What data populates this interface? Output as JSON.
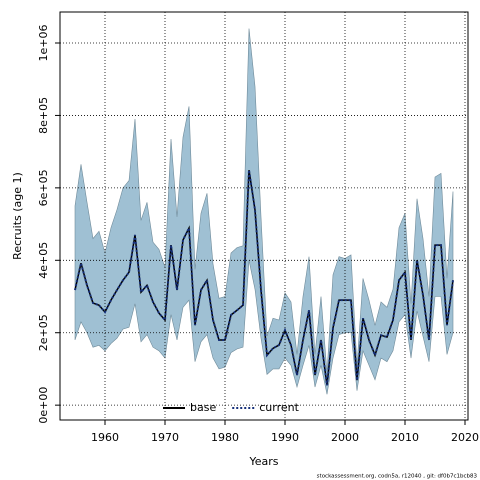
{
  "chart_data": {
    "type": "line",
    "xlabel": "Years",
    "ylabel": "Recruits (age 1)",
    "footnote": "stockassessment.org, codn5a, r12040 , git: df0b7c1bcb83",
    "x": [
      1955,
      1956,
      1957,
      1958,
      1959,
      1960,
      1961,
      1962,
      1963,
      1964,
      1965,
      1966,
      1967,
      1968,
      1969,
      1970,
      1971,
      1972,
      1973,
      1974,
      1975,
      1976,
      1977,
      1978,
      1979,
      1980,
      1981,
      1982,
      1983,
      1984,
      1985,
      1986,
      1987,
      1988,
      1989,
      1990,
      1991,
      1992,
      1993,
      1994,
      1995,
      1996,
      1997,
      1998,
      1999,
      2000,
      2001,
      2002,
      2003,
      2004,
      2005,
      2006,
      2007,
      2008,
      2009,
      2010,
      2011,
      2012,
      2013,
      2014,
      2015,
      2016,
      2017,
      2018
    ],
    "band": {
      "color": "#9fc0d3",
      "upper": [
        550000,
        665000,
        560000,
        460000,
        480000,
        420000,
        490000,
        540000,
        600000,
        620000,
        790000,
        510000,
        560000,
        450000,
        430000,
        380000,
        735000,
        520000,
        740000,
        825000,
        375000,
        530000,
        585000,
        390000,
        295000,
        300000,
        420000,
        435000,
        440000,
        1040000,
        880000,
        520000,
        190000,
        240000,
        235000,
        310000,
        285000,
        140000,
        300000,
        410000,
        140000,
        300000,
        90000,
        360000,
        410000,
        405000,
        415000,
        110000,
        350000,
        290000,
        220000,
        285000,
        270000,
        320000,
        490000,
        530000,
        280000,
        570000,
        460000,
        300000,
        630000,
        640000,
        350000,
        590000
      ],
      "lower": [
        180000,
        230000,
        200000,
        160000,
        165000,
        150000,
        170000,
        185000,
        210000,
        215000,
        280000,
        175000,
        195000,
        160000,
        150000,
        130000,
        250000,
        180000,
        270000,
        290000,
        120000,
        175000,
        195000,
        130000,
        100000,
        105000,
        145000,
        155000,
        160000,
        400000,
        320000,
        185000,
        85000,
        100000,
        100000,
        130000,
        110000,
        50000,
        110000,
        165000,
        50000,
        110000,
        30000,
        130000,
        195000,
        200000,
        200000,
        40000,
        150000,
        110000,
        70000,
        130000,
        120000,
        150000,
        230000,
        250000,
        130000,
        260000,
        190000,
        120000,
        300000,
        300000,
        140000,
        200000
      ]
    },
    "series": [
      {
        "name": "base",
        "color": "#000000",
        "dash": "none",
        "values": [
          318000,
          392000,
          331000,
          282000,
          276000,
          257000,
          290000,
          318000,
          345000,
          367000,
          470000,
          312000,
          331000,
          285000,
          254000,
          235000,
          442000,
          318000,
          456000,
          489000,
          221000,
          318000,
          345000,
          235000,
          180000,
          180000,
          249000,
          262000,
          276000,
          649000,
          539000,
          318000,
          138000,
          157000,
          166000,
          207000,
          166000,
          83000,
          180000,
          262000,
          83000,
          180000,
          55000,
          213000,
          290000,
          290000,
          290000,
          69000,
          240000,
          180000,
          138000,
          193000,
          188000,
          235000,
          345000,
          367000,
          180000,
          400000,
          304000,
          180000,
          442000,
          442000,
          221000,
          345000
        ]
      },
      {
        "name": "current",
        "color": "#16307a",
        "dash": "2,2",
        "values": [
          318000,
          392000,
          331000,
          282000,
          276000,
          257000,
          290000,
          318000,
          345000,
          367000,
          470000,
          312000,
          331000,
          285000,
          254000,
          235000,
          442000,
          318000,
          456000,
          489000,
          221000,
          318000,
          345000,
          235000,
          180000,
          180000,
          249000,
          262000,
          276000,
          649000,
          539000,
          318000,
          138000,
          157000,
          166000,
          207000,
          166000,
          83000,
          180000,
          262000,
          83000,
          180000,
          55000,
          213000,
          290000,
          290000,
          290000,
          69000,
          240000,
          180000,
          138000,
          193000,
          188000,
          235000,
          345000,
          367000,
          180000,
          400000,
          304000,
          180000,
          442000,
          442000,
          221000,
          345000
        ]
      }
    ],
    "xlim": [
      1952.5,
      2020.5
    ],
    "ylim": [
      -41000,
      1085600
    ],
    "xticks": [
      1960,
      1970,
      1980,
      1990,
      2000,
      2010,
      2020
    ],
    "yticks": [
      {
        "value": 0,
        "label": "0e+00"
      },
      {
        "value": 200000,
        "label": "2e+05"
      },
      {
        "value": 400000,
        "label": "4e+05"
      },
      {
        "value": 600000,
        "label": "6e+05"
      },
      {
        "value": 800000,
        "label": "8e+05"
      },
      {
        "value": 1000000,
        "label": "1e+06"
      }
    ],
    "grid": true,
    "legend": "bottom"
  }
}
